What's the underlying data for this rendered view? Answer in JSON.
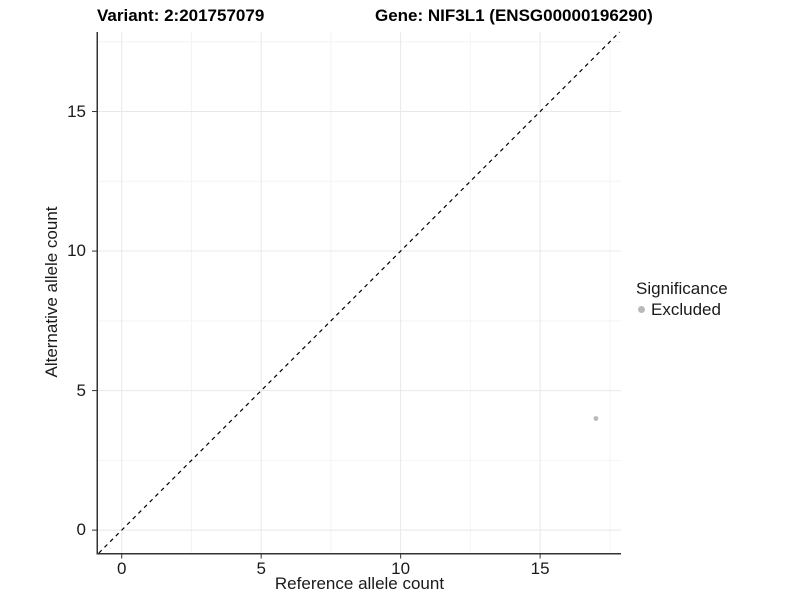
{
  "chart_data": {
    "type": "scatter",
    "title": {
      "left": "Variant: 2:201757079",
      "right": "Gene: NIF3L1 (ENSG00000196290)"
    },
    "xlabel": "Reference allele count",
    "ylabel": "Alternative allele count",
    "xlim": [
      -0.85,
      17.9
    ],
    "ylim": [
      -0.82,
      17.85
    ],
    "x_major_ticks": [
      0,
      5,
      10,
      15
    ],
    "y_major_ticks": [
      0,
      5,
      10,
      15
    ],
    "x_minor_ticks": [
      2.5,
      7.5,
      12.5,
      17.5
    ],
    "y_minor_ticks": [
      2.5,
      7.5,
      12.5,
      17.5
    ],
    "grid": "major and minor gridlines on, light grey on white panel",
    "identity_line": {
      "slope": 1,
      "intercept": 0,
      "linetype": "dashed",
      "color": "#000000"
    },
    "series": [
      {
        "name": "Excluded",
        "color": "#b9b9b9",
        "point_radius": 2.4,
        "points": [
          {
            "x": 17,
            "y": 4
          }
        ]
      }
    ],
    "legend": {
      "position": "right",
      "title": "Significance",
      "items": [
        {
          "label": "Excluded",
          "color": "#b9b9b9"
        }
      ]
    },
    "colors": {
      "grid_major": "#e8e8e8",
      "grid_minor": "#f4f4f4",
      "axis_line": "#333333",
      "tick": "#333333",
      "text": "#1a1a1a",
      "background": "#ffffff"
    }
  }
}
